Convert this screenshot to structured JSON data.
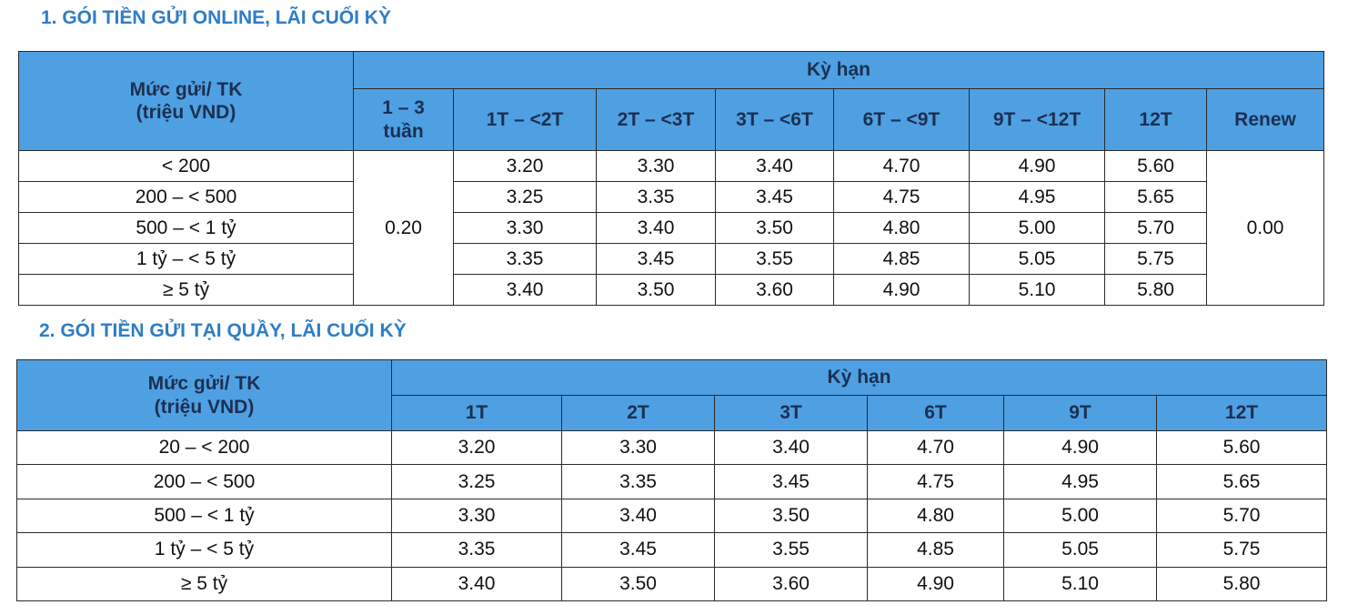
{
  "sections": [
    {
      "title": "1. GÓI TIỀN GỬI ONLINE, LÃI CUỐI KỲ",
      "table": {
        "row_header": [
          "Mức gửi/ TK",
          "(triệu VND)"
        ],
        "group_header": "Kỳ hạn",
        "columns": [
          [
            "1 – 3",
            "tuần"
          ],
          [
            "1T – <2T"
          ],
          [
            "2T – <3T"
          ],
          [
            "3T – <6T"
          ],
          [
            "6T – <9T"
          ],
          [
            "9T – <12T"
          ],
          [
            "12T"
          ],
          [
            "Renew"
          ]
        ],
        "merged_first": "0.20",
        "merged_last": "0.00",
        "rows": [
          {
            "label": "< 200",
            "cells": [
              "3.20",
              "3.30",
              "3.40",
              "4.70",
              "4.90",
              "5.60"
            ]
          },
          {
            "label": "200 – < 500",
            "cells": [
              "3.25",
              "3.35",
              "3.45",
              "4.75",
              "4.95",
              "5.65"
            ]
          },
          {
            "label": "500 – < 1 tỷ",
            "cells": [
              "3.30",
              "3.40",
              "3.50",
              "4.80",
              "5.00",
              "5.70"
            ]
          },
          {
            "label": "1 tỷ – < 5 tỷ",
            "cells": [
              "3.35",
              "3.45",
              "3.55",
              "4.85",
              "5.05",
              "5.75"
            ]
          },
          {
            "label": "≥ 5 tỷ",
            "cells": [
              "3.40",
              "3.50",
              "3.60",
              "4.90",
              "5.10",
              "5.80"
            ]
          }
        ]
      }
    },
    {
      "title": "2. GÓI TIỀN GỬI TẠI QUẦY, LÃI CUỐI KỲ",
      "table": {
        "row_header": [
          "Mức gửi/ TK",
          "(triệu VND)"
        ],
        "group_header": "Kỳ hạn",
        "columns": [
          [
            "1T"
          ],
          [
            "2T"
          ],
          [
            "3T"
          ],
          [
            "6T"
          ],
          [
            "9T"
          ],
          [
            "12T"
          ]
        ],
        "rows": [
          {
            "label": "20 – < 200",
            "cells": [
              "3.20",
              "3.30",
              "3.40",
              "4.70",
              "4.90",
              "5.60"
            ]
          },
          {
            "label": "200 – < 500",
            "cells": [
              "3.25",
              "3.35",
              "3.45",
              "4.75",
              "4.95",
              "5.65"
            ]
          },
          {
            "label": "500 – < 1 tỷ",
            "cells": [
              "3.30",
              "3.40",
              "3.50",
              "4.80",
              "5.00",
              "5.70"
            ]
          },
          {
            "label": "1 tỷ – < 5 tỷ",
            "cells": [
              "3.35",
              "3.45",
              "3.55",
              "4.85",
              "5.05",
              "5.75"
            ]
          },
          {
            "label": "≥ 5 tỷ",
            "cells": [
              "3.40",
              "3.50",
              "3.60",
              "4.90",
              "5.10",
              "5.80"
            ]
          }
        ]
      }
    }
  ]
}
